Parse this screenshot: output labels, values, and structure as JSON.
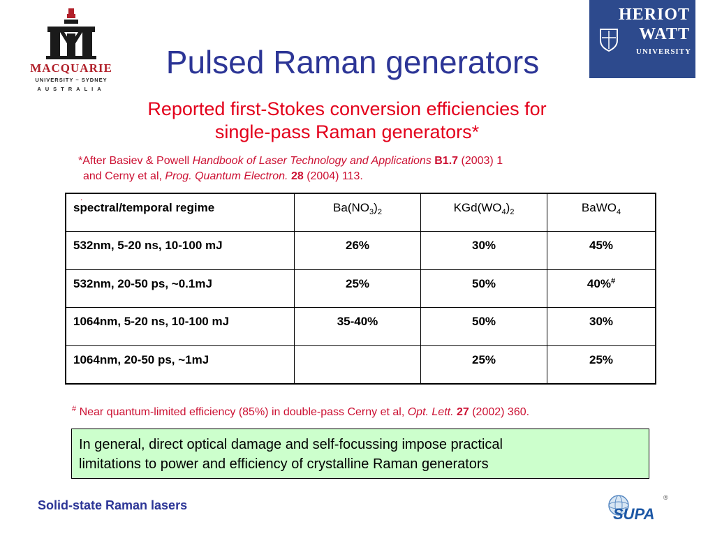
{
  "logos": {
    "macquarie": {
      "name": "MACQUARIE",
      "line2": "UNIVERSITY ~ SYDNEY",
      "line3": "AUSTRALIA",
      "color": "#b1202a"
    },
    "heriot_watt": {
      "line1": "HERIOT",
      "line2": "WATT",
      "line3": "UNIVERSITY",
      "color": "#2d4a8d"
    },
    "supa": {
      "text": "SUPA",
      "mark": "®"
    }
  },
  "slide": {
    "title": "Pulsed Raman generators",
    "subtitle_line1": "Reported first-Stokes conversion efficiencies for",
    "subtitle_line2": "single-pass Raman generators*",
    "reference": {
      "l1_a": "*After Basiev & Powell ",
      "l1_b": "Handbook of Laser Technology and Applications",
      "l1_c": " B1.7",
      "l1_d": " (2003) 1",
      "l2_a": "and Cerny et al, ",
      "l2_b": "Prog. Quantum Electron.",
      "l2_c": " 28",
      "l2_d": " (2004) 113."
    },
    "red_dot": "."
  },
  "table": {
    "header": {
      "c0": "spectral/temporal regime",
      "c1_pre": "Ba(NO",
      "c1_sub1": "3",
      "c1_mid": ")",
      "c1_sub2": "2",
      "c2_pre": "KGd(WO",
      "c2_sub1": "4",
      "c2_mid": ")",
      "c2_sub2": "2",
      "c3_pre": "BaWO",
      "c3_sub": "4"
    },
    "rows": [
      {
        "regime": "532nm, 5-20 ns, 10-100 mJ",
        "ba_no3": "26%",
        "kgd_wo4": "30%",
        "bawo4": "45%",
        "bawo4_mark": ""
      },
      {
        "regime": "532nm, 20-50 ps, ~0.1mJ",
        "ba_no3": "25%",
        "kgd_wo4": "50%",
        "bawo4": "40%",
        "bawo4_mark": "#"
      },
      {
        "regime": "1064nm, 5-20 ns, 10-100 mJ",
        "ba_no3": "35-40%",
        "kgd_wo4": "50%",
        "bawo4": "30%",
        "bawo4_mark": ""
      },
      {
        "regime": "1064nm, 20-50 ps, ~1mJ",
        "ba_no3": "",
        "kgd_wo4": "25%",
        "bawo4": "25%",
        "bawo4_mark": ""
      }
    ]
  },
  "footnote": {
    "mark": "#",
    "text": " Near quantum-limited efficiency (85%) in double-pass Cerny et al,  ",
    "journal": "Opt. Lett.",
    "volume": " 27",
    "rest": " (2002) 360."
  },
  "note_box": {
    "line1": "In general, direct optical damage and self-focussing  impose practical",
    "line2": "limitations to power and efficiency of crystalline Raman generators",
    "background": "#ccffcc"
  },
  "footer": {
    "text": "Solid-state Raman lasers"
  },
  "colors": {
    "title": "#2c3596",
    "subtitle": "#e3001b",
    "reference": "#cc1133"
  }
}
